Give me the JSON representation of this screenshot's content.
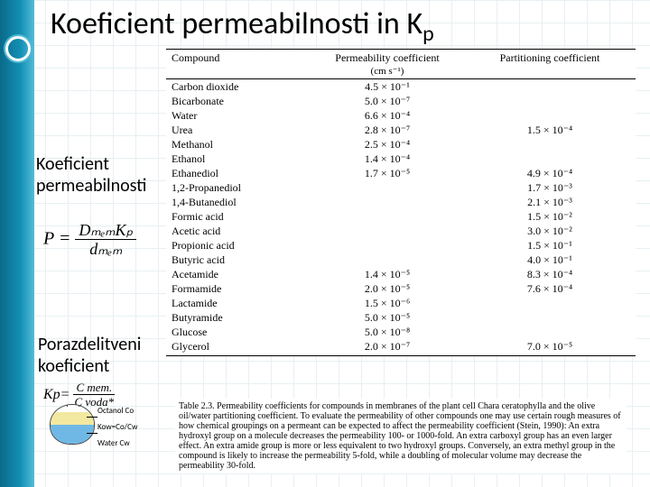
{
  "title_main": "Koeficient permeabilnosti in K",
  "title_sub": "p",
  "left_label_1a": "Koeficient",
  "left_label_1b": "permeabilnosti",
  "left_label_2a": "Porazdelitveni",
  "left_label_2b": "koeficient",
  "formula1_lhs": "P =",
  "formula1_num": "DₘₑₘKₚ",
  "formula1_den": "dₘₑₘ",
  "formula2_lhs": "Kp=",
  "formula2_num": "C mem.",
  "formula2_den": "C voda*",
  "kow_oct": "Octanol Co",
  "kow_eq": "Kow=Co/Cw",
  "kow_water": "Water Cw",
  "annot_p": "P",
  "annot_kp": "K",
  "annot_kp_sub": "p",
  "head_compound": "Compound",
  "head_perm": "Permeability coefficient",
  "head_perm_unit": "(cm s⁻¹)",
  "head_part": "Partitioning coefficient",
  "rows": [
    {
      "c": "Carbon dioxide",
      "p": "4.5 × 10⁻¹",
      "k": ""
    },
    {
      "c": "Bicarbonate",
      "p": "5.0 × 10⁻⁷",
      "k": ""
    },
    {
      "c": "Water",
      "p": "6.6 × 10⁻⁴",
      "k": ""
    },
    {
      "c": "Urea",
      "p": "2.8 × 10⁻⁷",
      "k": "1.5 × 10⁻⁴"
    },
    {
      "c": "Methanol",
      "p": "2.5 × 10⁻⁴",
      "k": ""
    },
    {
      "c": "Ethanol",
      "p": "1.4 × 10⁻⁴",
      "k": ""
    },
    {
      "c": "Ethanediol",
      "p": "1.7 × 10⁻⁵",
      "k": "4.9 × 10⁻⁴"
    },
    {
      "c": "1,2-Propanediol",
      "p": "",
      "k": "1.7 × 10⁻³"
    },
    {
      "c": "1,4-Butanediol",
      "p": "",
      "k": "2.1 × 10⁻³"
    },
    {
      "c": "Formic acid",
      "p": "",
      "k": "1.5 × 10⁻²"
    },
    {
      "c": "Acetic acid",
      "p": "",
      "k": "3.0 × 10⁻²"
    },
    {
      "c": "Propionic acid",
      "p": "",
      "k": "1.5 × 10⁻¹"
    },
    {
      "c": "Butyric acid",
      "p": "",
      "k": "4.0 × 10⁻¹"
    },
    {
      "c": "Acetamide",
      "p": "1.4 × 10⁻⁵",
      "k": "8.3 × 10⁻⁴"
    },
    {
      "c": "Formamide",
      "p": "2.0 × 10⁻⁵",
      "k": "7.6 × 10⁻⁴"
    },
    {
      "c": "Lactamide",
      "p": "1.5 × 10⁻⁶",
      "k": ""
    },
    {
      "c": "Butyramide",
      "p": "5.0 × 10⁻⁵",
      "k": ""
    },
    {
      "c": "Glucose",
      "p": "5.0 × 10⁻⁸",
      "k": ""
    },
    {
      "c": "Glycerol",
      "p": "2.0 × 10⁻⁷",
      "k": "7.0 × 10⁻⁵"
    }
  ],
  "caption": "Table 2.3. Permeability coefficients for compounds in membranes of the plant cell Chara ceratophylla and the olive oil/water partitioning coefficient. To evaluate the permeability of other compounds one may use certain rough measures of how chemical groupings on a permeant can be expected to affect the permeability coefficient (Stein, 1990): An extra hydroxyl group on a molecule decreases the permeability 100- or 1000-fold. An extra carboxyl group has an even larger effect. An extra amide group is more or less equivalent to two hydroxyl groups. Conversely, an extra methyl group in the compound is likely to increase the permeability 5-fold, while a doubling of molecular volume may decrease the permeability 30-fold."
}
